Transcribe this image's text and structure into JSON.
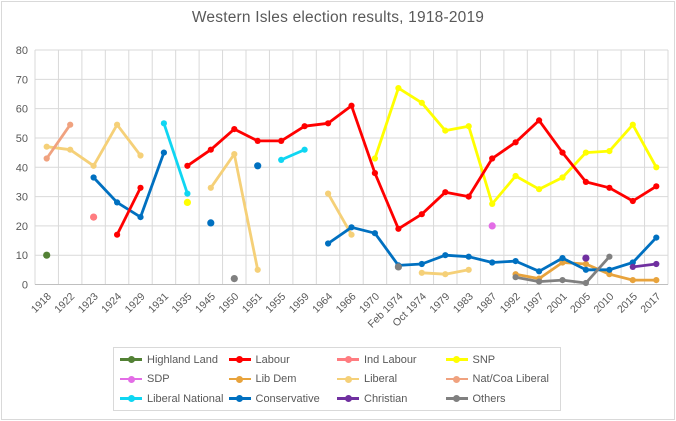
{
  "colors": {
    "text": "#595959",
    "grid": "#d9d9d9",
    "axis": "#bfbfbf",
    "background": "#ffffff"
  },
  "chart_data": {
    "type": "line",
    "title": "Western Isles election results, 1918-2019",
    "xlabel": "",
    "ylabel": "",
    "ylim": [
      0,
      80
    ],
    "y_ticks": [
      0,
      10,
      20,
      30,
      40,
      50,
      60,
      70,
      80
    ],
    "grid": true,
    "legend_position": "bottom",
    "categories": [
      "1918",
      "1922",
      "1923",
      "1924",
      "1929",
      "1931",
      "1935",
      "1945",
      "1950",
      "1951",
      "1955",
      "1959",
      "1964",
      "1966",
      "1970",
      "Feb 1974",
      "Oct 1974",
      "1979",
      "1983",
      "1987",
      "1992",
      "1997",
      "2001",
      "2005",
      "2010",
      "2015",
      "2017"
    ],
    "series": [
      {
        "name": "Highland Land",
        "color": "#538135",
        "values": [
          10,
          null,
          null,
          null,
          null,
          null,
          null,
          null,
          null,
          null,
          null,
          null,
          null,
          null,
          null,
          null,
          null,
          null,
          null,
          null,
          null,
          null,
          null,
          null,
          null,
          null,
          null
        ]
      },
      {
        "name": "Labour",
        "color": "#ff0000",
        "values": [
          null,
          null,
          null,
          17,
          33,
          null,
          40.5,
          46,
          53,
          49,
          49,
          54,
          55,
          61,
          38,
          19,
          24,
          31.5,
          30,
          43,
          48.5,
          56,
          45,
          35,
          33,
          28.5,
          33.5
        ]
      },
      {
        "name": "Ind Labour",
        "color": "#ff7c80",
        "values": [
          null,
          null,
          23,
          null,
          null,
          null,
          null,
          null,
          null,
          null,
          null,
          null,
          null,
          null,
          null,
          null,
          null,
          null,
          null,
          null,
          null,
          null,
          null,
          null,
          null,
          null,
          null
        ]
      },
      {
        "name": "SNP",
        "color": "#ffff00",
        "values": [
          null,
          null,
          null,
          null,
          null,
          null,
          28,
          null,
          null,
          null,
          null,
          null,
          null,
          null,
          43,
          67,
          62,
          52.5,
          54,
          27.5,
          37,
          32.5,
          36.5,
          45,
          45.5,
          54.5,
          40
        ]
      },
      {
        "name": "SDP",
        "color": "#e36de6",
        "values": [
          null,
          null,
          null,
          null,
          null,
          null,
          null,
          null,
          null,
          null,
          null,
          null,
          null,
          null,
          null,
          null,
          null,
          null,
          null,
          20,
          null,
          null,
          null,
          null,
          null,
          null,
          null
        ]
      },
      {
        "name": "Lib Dem",
        "color": "#e8a33c",
        "values": [
          null,
          null,
          null,
          null,
          null,
          null,
          null,
          null,
          null,
          null,
          null,
          null,
          null,
          null,
          null,
          null,
          null,
          null,
          null,
          null,
          3.5,
          2,
          7.5,
          7,
          3.5,
          1.5,
          1.5
        ]
      },
      {
        "name": "Liberal",
        "color": "#f5d078",
        "values": [
          47,
          46,
          40.5,
          54.5,
          44,
          null,
          null,
          33,
          44.5,
          5,
          null,
          null,
          31,
          17,
          null,
          null,
          4,
          3.5,
          5,
          null,
          null,
          null,
          null,
          null,
          null,
          null,
          null
        ]
      },
      {
        "name": "Nat/Coa Liberal",
        "color": "#f0a27f",
        "values": [
          43,
          54.5,
          null,
          null,
          null,
          null,
          null,
          null,
          null,
          null,
          null,
          null,
          null,
          null,
          null,
          null,
          null,
          null,
          null,
          null,
          null,
          null,
          null,
          null,
          null,
          null,
          null
        ]
      },
      {
        "name": "Liberal National",
        "color": "#0fd6f2",
        "values": [
          null,
          null,
          null,
          null,
          null,
          55,
          31,
          null,
          null,
          null,
          42.5,
          46,
          null,
          null,
          null,
          null,
          null,
          null,
          null,
          null,
          null,
          null,
          null,
          null,
          null,
          null,
          null
        ]
      },
      {
        "name": "Conservative",
        "color": "#0070c0",
        "values": [
          null,
          null,
          36.5,
          28,
          23,
          45,
          null,
          21,
          null,
          40.5,
          null,
          null,
          14,
          19.5,
          17.5,
          6.5,
          7,
          10,
          9.5,
          7.5,
          8,
          4.5,
          9,
          5,
          5,
          7.5,
          16
        ]
      },
      {
        "name": "Christian",
        "color": "#7030a0",
        "values": [
          null,
          null,
          null,
          null,
          null,
          null,
          null,
          null,
          null,
          null,
          null,
          null,
          null,
          null,
          null,
          null,
          null,
          null,
          null,
          null,
          null,
          null,
          null,
          9,
          null,
          6,
          7
        ]
      },
      {
        "name": "Others",
        "color": "#808080",
        "values": [
          null,
          null,
          null,
          null,
          null,
          null,
          null,
          null,
          2,
          null,
          null,
          null,
          null,
          null,
          null,
          6,
          null,
          null,
          null,
          null,
          2.5,
          1,
          1.5,
          0.5,
          9.5,
          null,
          null
        ]
      }
    ]
  }
}
